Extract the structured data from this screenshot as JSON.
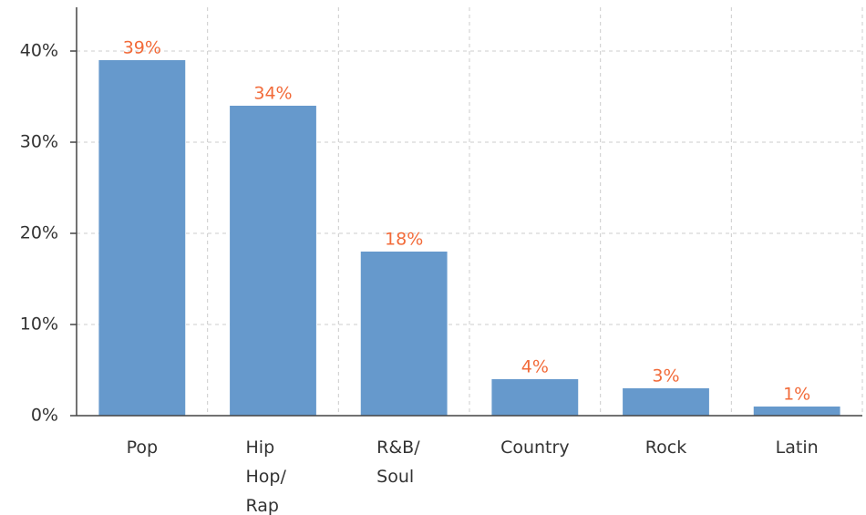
{
  "chart_data": {
    "type": "bar",
    "categories": [
      "Pop",
      "Hip Hop/Rap",
      "R&B/Soul",
      "Country",
      "Rock",
      "Latin"
    ],
    "values": [
      39,
      34,
      18,
      4,
      3,
      1
    ],
    "value_labels": [
      "39%",
      "34%",
      "18%",
      "4%",
      "3%",
      "1%"
    ],
    "color": "#6699cc",
    "label_color": "#f26b3a",
    "ylim": [
      0,
      44.8
    ],
    "yticks": [
      {
        "value": 0,
        "label": "0%"
      },
      {
        "value": 10,
        "label": "10%"
      },
      {
        "value": 20,
        "label": "20%"
      },
      {
        "value": 30,
        "label": "30%"
      },
      {
        "value": 40,
        "label": "40%"
      }
    ],
    "grid": true
  }
}
